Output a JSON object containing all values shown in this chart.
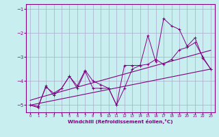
{
  "xlabel": "Windchill (Refroidissement éolien,°C)",
  "background_color": "#c8eef0",
  "grid_color": "#aaaacc",
  "line_color": "#800080",
  "x_data": [
    0,
    1,
    2,
    3,
    4,
    5,
    6,
    7,
    8,
    9,
    10,
    11,
    12,
    13,
    14,
    15,
    16,
    17,
    18,
    19,
    20,
    21,
    22,
    23
  ],
  "trend1": [
    -5.0,
    -4.935,
    -4.87,
    -4.804,
    -4.739,
    -4.674,
    -4.609,
    -4.543,
    -4.478,
    -4.413,
    -4.348,
    -4.283,
    -4.217,
    -4.152,
    -4.087,
    -4.022,
    -3.957,
    -3.891,
    -3.826,
    -3.761,
    -3.696,
    -3.63,
    -3.565,
    -3.5
  ],
  "trend2": [
    -4.8,
    -4.7,
    -4.61,
    -4.52,
    -4.43,
    -4.34,
    -4.25,
    -4.16,
    -4.07,
    -3.98,
    -3.89,
    -3.8,
    -3.71,
    -3.62,
    -3.53,
    -3.44,
    -3.35,
    -3.26,
    -3.17,
    -3.08,
    -2.99,
    -2.9,
    -2.81,
    -2.72
  ],
  "jagged1": [
    -5.0,
    -5.1,
    -4.2,
    -4.6,
    -4.3,
    -3.8,
    -4.3,
    -3.6,
    -4.3,
    -4.3,
    -4.3,
    -5.0,
    -4.3,
    -3.5,
    -3.35,
    -3.3,
    -3.1,
    -3.3,
    -3.1,
    -2.7,
    -2.6,
    -2.4,
    -3.0,
    -3.5
  ],
  "jagged2": [
    -5.0,
    -5.05,
    -4.25,
    -4.5,
    -4.3,
    -3.8,
    -4.2,
    -3.55,
    -4.0,
    -4.15,
    -4.3,
    -5.0,
    -3.35,
    -3.35,
    -3.35,
    -2.1,
    -3.2,
    -1.4,
    -1.7,
    -1.85,
    -2.55,
    -2.2,
    -3.05,
    -3.5
  ],
  "ylim": [
    -5.3,
    -0.8
  ],
  "xlim": [
    -0.5,
    23.5
  ],
  "yticks": [
    -5,
    -4,
    -3,
    -2,
    -1
  ],
  "xticks": [
    0,
    1,
    2,
    3,
    4,
    5,
    6,
    7,
    8,
    9,
    10,
    11,
    12,
    13,
    14,
    15,
    16,
    17,
    18,
    19,
    20,
    21,
    22,
    23
  ]
}
